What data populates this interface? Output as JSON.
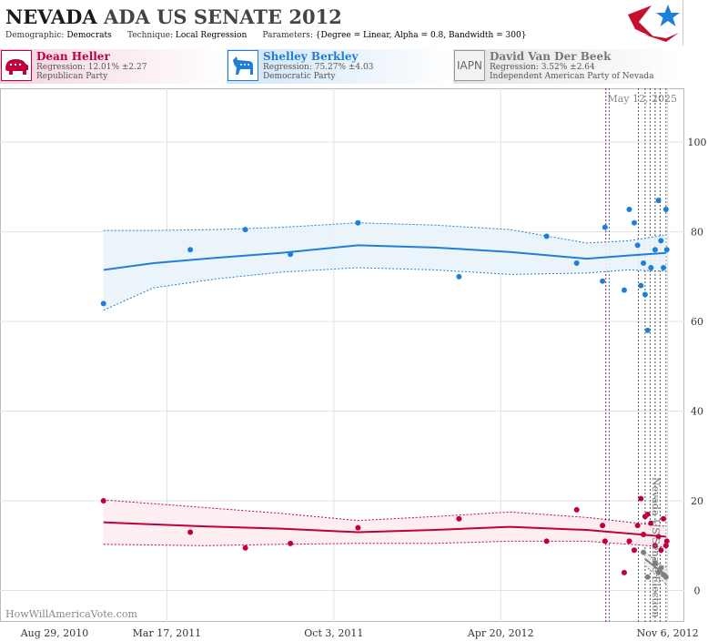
{
  "header": {
    "title_state": "NEVADA",
    "title_rest": "ADA US SENATE 2012",
    "demographic_label": "Demographic:",
    "demographic_value": "Democrats",
    "technique_label": "Technique:",
    "technique_value": "Local Regression",
    "parameters_label": "Parameters:",
    "parameters_value": "{Degree = Linear, Alpha = 0.8, Bandwidth = 300}"
  },
  "candidates": [
    {
      "name": "Dean Heller",
      "regression": "Regression: 12.01% ±2.27",
      "party": "Republican Party",
      "icon": "elephant-icon",
      "color": "#c0003c"
    },
    {
      "name": "Shelley Berkley",
      "regression": "Regression: 75.27% ±4.03",
      "party": "Democratic Party",
      "icon": "donkey-icon",
      "color": "#1e7fd8"
    },
    {
      "name": "David Van Der Beek",
      "regression": "Regression: 3.52% ±2.64",
      "party": "Independent American Party  of Nevada",
      "icon_text": "IAPN",
      "color": "#808080"
    }
  ],
  "chart_data": {
    "type": "scatter",
    "date_label": "May 12, 2025",
    "vertical_annotation": "Nevada US Senate Election",
    "credit": "HowWillAmericaVote.com",
    "xlim": [
      "2010-08-29",
      "2012-11-26"
    ],
    "ylim": [
      -7,
      112
    ],
    "x_ticks": [
      {
        "date": "2010-08-29",
        "label": "Aug 29, 2010"
      },
      {
        "date": "2011-03-17",
        "label": "Mar 17, 2011"
      },
      {
        "date": "2011-10-03",
        "label": "Oct 3, 2011"
      },
      {
        "date": "2012-04-20",
        "label": "Apr 20, 2012"
      },
      {
        "date": "2012-11-06",
        "label": "Nov 6, 2012"
      }
    ],
    "y_ticks": [
      0,
      20,
      40,
      60,
      80,
      100
    ],
    "grid": true,
    "vertical_lines": [
      {
        "date": "2012-08-24",
        "color": "#c0003c"
      },
      {
        "date": "2012-08-28",
        "color": "#1e7fd8"
      },
      {
        "date": "2012-10-02",
        "color": "#555555"
      },
      {
        "date": "2012-10-10",
        "color": "#555555"
      },
      {
        "date": "2012-10-16",
        "color": "#555555"
      },
      {
        "date": "2012-10-22",
        "color": "#555555"
      },
      {
        "date": "2012-10-28",
        "color": "#555555"
      },
      {
        "date": "2012-11-04",
        "color": "#555555"
      }
    ],
    "series": [
      {
        "name": "Shelley Berkley",
        "color": "#1e7fd8",
        "band_color": "#eaf3fb",
        "trend": [
          {
            "x": "2010-12-31",
            "y": 71.5,
            "lo": 62.5,
            "hi": 80.3
          },
          {
            "x": "2011-03-01",
            "y": 73.0,
            "lo": 67.5,
            "hi": 80.3
          },
          {
            "x": "2011-05-15",
            "y": 74.2,
            "lo": 69.5,
            "hi": 80.5
          },
          {
            "x": "2011-08-01",
            "y": 75.3,
            "lo": 71.0,
            "hi": 81.0
          },
          {
            "x": "2011-11-01",
            "y": 77.0,
            "lo": 72.0,
            "hi": 82.0
          },
          {
            "x": "2012-02-01",
            "y": 76.5,
            "lo": 71.5,
            "hi": 81.5
          },
          {
            "x": "2012-05-01",
            "y": 75.5,
            "lo": 70.5,
            "hi": 80.5
          },
          {
            "x": "2012-08-01",
            "y": 74.0,
            "lo": 70.8,
            "hi": 77.5
          },
          {
            "x": "2012-09-20",
            "y": 74.7,
            "lo": 71.5,
            "hi": 78.0
          },
          {
            "x": "2012-11-04",
            "y": 75.3,
            "lo": 71.2,
            "hi": 79.3
          }
        ],
        "points": [
          {
            "x": "2010-12-31",
            "y": 64
          },
          {
            "x": "2011-04-14",
            "y": 76
          },
          {
            "x": "2011-06-19",
            "y": 80.5
          },
          {
            "x": "2011-08-12",
            "y": 75
          },
          {
            "x": "2011-11-01",
            "y": 82
          },
          {
            "x": "2012-03-01",
            "y": 70
          },
          {
            "x": "2012-06-14",
            "y": 79
          },
          {
            "x": "2012-07-20",
            "y": 73
          },
          {
            "x": "2012-08-20",
            "y": 69
          },
          {
            "x": "2012-08-23",
            "y": 81
          },
          {
            "x": "2012-09-15",
            "y": 67
          },
          {
            "x": "2012-09-21",
            "y": 85
          },
          {
            "x": "2012-09-27",
            "y": 82
          },
          {
            "x": "2012-10-01",
            "y": 77
          },
          {
            "x": "2012-10-05",
            "y": 68
          },
          {
            "x": "2012-10-08",
            "y": 73
          },
          {
            "x": "2012-10-10",
            "y": 66
          },
          {
            "x": "2012-10-13",
            "y": 58
          },
          {
            "x": "2012-10-17",
            "y": 72
          },
          {
            "x": "2012-10-22",
            "y": 76
          },
          {
            "x": "2012-10-26",
            "y": 87
          },
          {
            "x": "2012-10-29",
            "y": 78
          },
          {
            "x": "2012-11-01",
            "y": 72
          },
          {
            "x": "2012-11-04",
            "y": 85
          },
          {
            "x": "2012-11-05",
            "y": 76
          }
        ]
      },
      {
        "name": "Dean Heller",
        "color": "#c0003c",
        "band_color": "#fcecf0",
        "trend": [
          {
            "x": "2010-12-31",
            "y": 15.2,
            "lo": 10.3,
            "hi": 20.2
          },
          {
            "x": "2011-05-01",
            "y": 14.3,
            "lo": 10.0,
            "hi": 18.5
          },
          {
            "x": "2011-08-01",
            "y": 13.8,
            "lo": 10.3,
            "hi": 17.2
          },
          {
            "x": "2011-11-01",
            "y": 13.0,
            "lo": 10.5,
            "hi": 15.6
          },
          {
            "x": "2012-02-01",
            "y": 13.5,
            "lo": 10.5,
            "hi": 16.5
          },
          {
            "x": "2012-05-01",
            "y": 14.2,
            "lo": 11.0,
            "hi": 17.5
          },
          {
            "x": "2012-08-01",
            "y": 13.5,
            "lo": 11.0,
            "hi": 16.3
          },
          {
            "x": "2012-11-04",
            "y": 12.0,
            "lo": 9.7,
            "hi": 14.3
          }
        ],
        "points": [
          {
            "x": "2010-12-31",
            "y": 20
          },
          {
            "x": "2011-04-14",
            "y": 13
          },
          {
            "x": "2011-06-19",
            "y": 9.5
          },
          {
            "x": "2011-08-12",
            "y": 10.5
          },
          {
            "x": "2011-11-01",
            "y": 14
          },
          {
            "x": "2012-03-01",
            "y": 16
          },
          {
            "x": "2012-06-14",
            "y": 11
          },
          {
            "x": "2012-07-20",
            "y": 18
          },
          {
            "x": "2012-08-20",
            "y": 14.5
          },
          {
            "x": "2012-08-23",
            "y": 11
          },
          {
            "x": "2012-09-15",
            "y": 4
          },
          {
            "x": "2012-09-21",
            "y": 11
          },
          {
            "x": "2012-09-27",
            "y": 9
          },
          {
            "x": "2012-10-01",
            "y": 14.5
          },
          {
            "x": "2012-10-05",
            "y": 20.5
          },
          {
            "x": "2012-10-08",
            "y": 12.5
          },
          {
            "x": "2012-10-10",
            "y": 16.5
          },
          {
            "x": "2012-10-13",
            "y": 17
          },
          {
            "x": "2012-10-17",
            "y": 15
          },
          {
            "x": "2012-10-22",
            "y": 10
          },
          {
            "x": "2012-10-26",
            "y": 12
          },
          {
            "x": "2012-10-29",
            "y": 9
          },
          {
            "x": "2012-11-01",
            "y": 16
          },
          {
            "x": "2012-11-04",
            "y": 10
          },
          {
            "x": "2012-11-05",
            "y": 11
          }
        ]
      },
      {
        "name": "David Van Der Beek",
        "color": "#808080",
        "band_color": "#eeeeee",
        "trend": [
          {
            "x": "2012-10-10",
            "y": 7.0,
            "lo": 5.5,
            "hi": 8.5
          },
          {
            "x": "2012-10-24",
            "y": 5.0,
            "lo": 3.2,
            "hi": 6.5
          },
          {
            "x": "2012-11-04",
            "y": 3.5,
            "lo": 1.5,
            "hi": 5.0
          }
        ],
        "points": [
          {
            "x": "2012-10-08",
            "y": 8.5
          },
          {
            "x": "2012-10-13",
            "y": 3
          },
          {
            "x": "2012-10-22",
            "y": 6
          },
          {
            "x": "2012-10-26",
            "y": 4
          },
          {
            "x": "2012-10-29",
            "y": 5
          },
          {
            "x": "2012-11-01",
            "y": 3.5
          },
          {
            "x": "2012-11-04",
            "y": 3
          }
        ]
      }
    ]
  }
}
